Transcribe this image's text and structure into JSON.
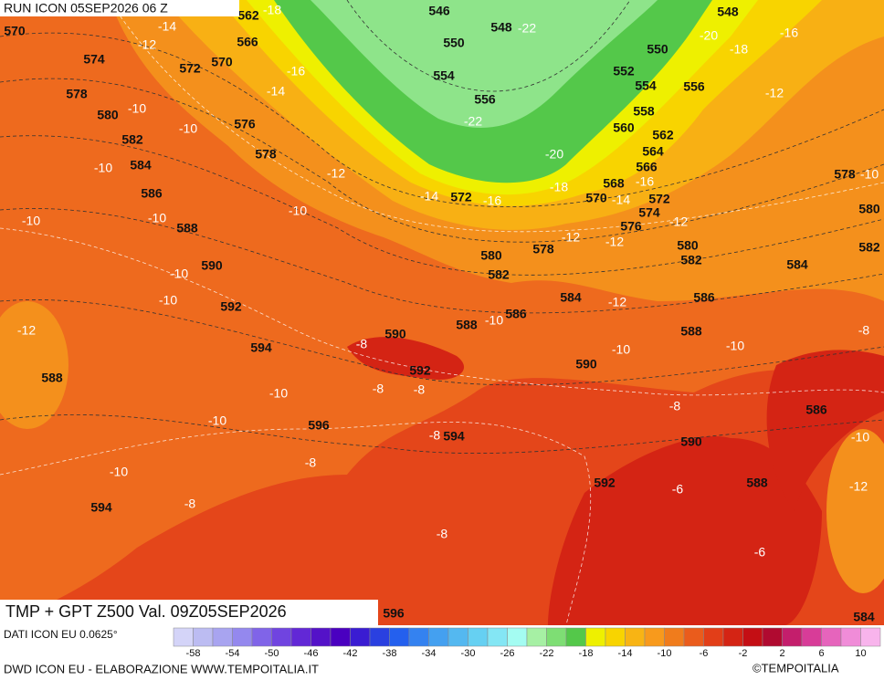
{
  "header": {
    "run": "RUN ICON 05SEP2026 06 Z"
  },
  "map_title": "TMP + GPT Z500 Val. 09Z05SEP2026",
  "source": "DATI ICON EU 0.0625°",
  "credit": "DWD ICON EU - ELABORAZIONE WWW.TEMPOITALIA.IT",
  "brand": "©TEMPOITALIA",
  "colorbar": {
    "colors": [
      "#d4d4f8",
      "#bcbcf2",
      "#a8a4f0",
      "#9488ee",
      "#8064e8",
      "#7044e0",
      "#6228d6",
      "#5412c8",
      "#4a00c0",
      "#3a1cd2",
      "#2a40e0",
      "#2460ee",
      "#3482f0",
      "#44a0f0",
      "#54b8f0",
      "#66d0f2",
      "#84e6f4",
      "#a4fcf2",
      "#a6f0a4",
      "#7ede74",
      "#54c84a",
      "#eef000",
      "#f8d400",
      "#f8b414",
      "#f89a1c",
      "#f07c1c",
      "#ea5c1c",
      "#e23e18",
      "#d42414",
      "#c40e14",
      "#b00a30",
      "#c41e6c",
      "#d83c98",
      "#e664bc",
      "#f08cd8",
      "#f8b4ec"
    ],
    "ticks": [
      -58,
      -54,
      -50,
      -46,
      -42,
      -38,
      -34,
      -30,
      -26,
      -22,
      -18,
      -14,
      -10,
      -6,
      -2,
      2,
      6,
      10
    ]
  },
  "labels": {
    "height": [
      570,
      562,
      566,
      574,
      572,
      570,
      578,
      580,
      576,
      582,
      578,
      584,
      586,
      588,
      590,
      592,
      594,
      596,
      594,
      588,
      546,
      548,
      550,
      554,
      556,
      572,
      580,
      582,
      578,
      590,
      588,
      586,
      584,
      592,
      594,
      590,
      592,
      596,
      548,
      550,
      552,
      554,
      556,
      558,
      560,
      562,
      564,
      566,
      568,
      570,
      572,
      574,
      576,
      580,
      582,
      584,
      586,
      588,
      578,
      580,
      582,
      586,
      590,
      588,
      584
    ],
    "temperature": [
      -18,
      -14,
      -12,
      -16,
      -14,
      -10,
      -10,
      -10,
      -12,
      -10,
      -10,
      -10,
      -10,
      -10,
      -12,
      -10,
      -10,
      -8,
      -8,
      -8,
      -8,
      -8,
      -10,
      -8,
      -8,
      -22,
      -22,
      -20,
      -18,
      -16,
      -20,
      -18,
      -16,
      -14,
      -14,
      -16,
      -12,
      -12,
      -12,
      -10,
      -12,
      -10,
      -10,
      -12,
      -10,
      -8,
      -8,
      -10,
      -12,
      -6,
      -6
    ]
  }
}
